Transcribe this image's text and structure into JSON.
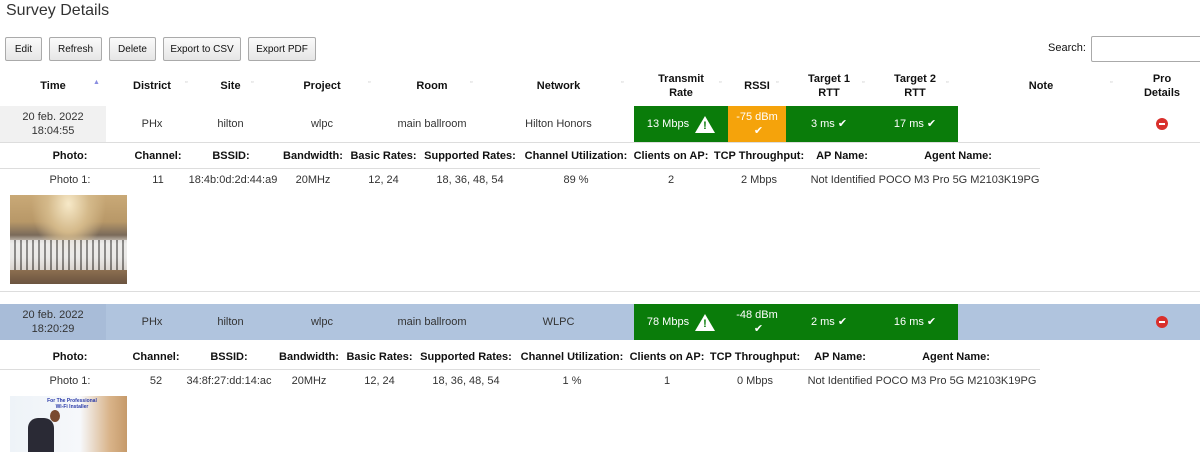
{
  "page": {
    "title": "Survey Details"
  },
  "toolbar": {
    "edit": "Edit",
    "refresh": "Refresh",
    "delete": "Delete",
    "export_csv": "Export to CSV",
    "export_pdf": "Export PDF",
    "search_label": "Search:",
    "search_value": ""
  },
  "columns": {
    "time": "Time",
    "district": "District",
    "site": "Site",
    "project": "Project",
    "room": "Room",
    "network": "Network",
    "transmit_rate_1": "Transmit",
    "transmit_rate_2": "Rate",
    "rssi": "RSSI",
    "target1_1": "Target 1",
    "target1_2": "RTT",
    "target2_1": "Target 2",
    "target2_2": "RTT",
    "note": "Note",
    "pro_1": "Pro",
    "pro_2": "Details"
  },
  "detail_columns": {
    "photo": "Photo:",
    "channel": "Channel:",
    "bssid": "BSSID:",
    "bandwidth": "Bandwidth:",
    "basic_rates": "Basic Rates:",
    "supported_rates": "Supported Rates:",
    "channel_utilization": "Channel Utilization:",
    "clients": "Clients on AP:",
    "tcp": "TCP Throughput:",
    "ap_name": "AP Name:",
    "agent_name": "Agent Name:"
  },
  "rows": [
    {
      "date": "20 feb. 2022",
      "time": "18:04:55",
      "district": "PHx",
      "site": "hilton",
      "project": "wlpc",
      "room": "main ballroom",
      "network": "Hilton Honors",
      "transmit_rate": "13 Mbps",
      "rssi": "-75 dBm",
      "rssi_status": "warning",
      "target1": "3 ms",
      "target2": "17 ms",
      "note": "",
      "detail": {
        "photo": "Photo 1:",
        "channel": "11",
        "bssid": "18:4b:0d:2d:44:a9",
        "bandwidth": "20MHz",
        "basic_rates": "12, 24",
        "supported_rates": "18, 36, 48, 54",
        "channel_utilization": "89 %",
        "clients": "2",
        "tcp": "2 Mbps",
        "ap_name": "Not Identified",
        "agent_name": "POCO M3 Pro 5G M2103K19PG"
      }
    },
    {
      "date": "20 feb. 2022",
      "time": "18:20:29",
      "district": "PHx",
      "site": "hilton",
      "project": "wlpc",
      "room": "main ballroom",
      "network": "WLPC",
      "transmit_rate": "78 Mbps",
      "rssi": "-48 dBm",
      "rssi_status": "good",
      "target1": "2 ms",
      "target2": "16 ms",
      "note": "",
      "detail": {
        "photo": "Photo 1:",
        "channel": "52",
        "bssid": "34:8f:27:dd:14:ac",
        "bandwidth": "20MHz",
        "basic_rates": "12, 24",
        "supported_rates": "18, 36, 48, 54",
        "channel_utilization": "1 %",
        "clients": "1",
        "tcp": "0 Mbps",
        "ap_name": "Not Identified",
        "agent_name": "POCO M3 Pro 5G M2103K19PG"
      },
      "photo_caption_1": "For The Professional",
      "photo_caption_2": "Wi-Fi Installer"
    }
  ],
  "colors": {
    "good": "#0a7c0a",
    "warning": "#f5a30b",
    "selected_row": "#b0c4de",
    "delete": "#d9302c"
  },
  "icons": {
    "warning": "warning-triangle-icon",
    "check": "check-icon",
    "delete": "remove-circle-icon",
    "sort": "sort-icon"
  }
}
